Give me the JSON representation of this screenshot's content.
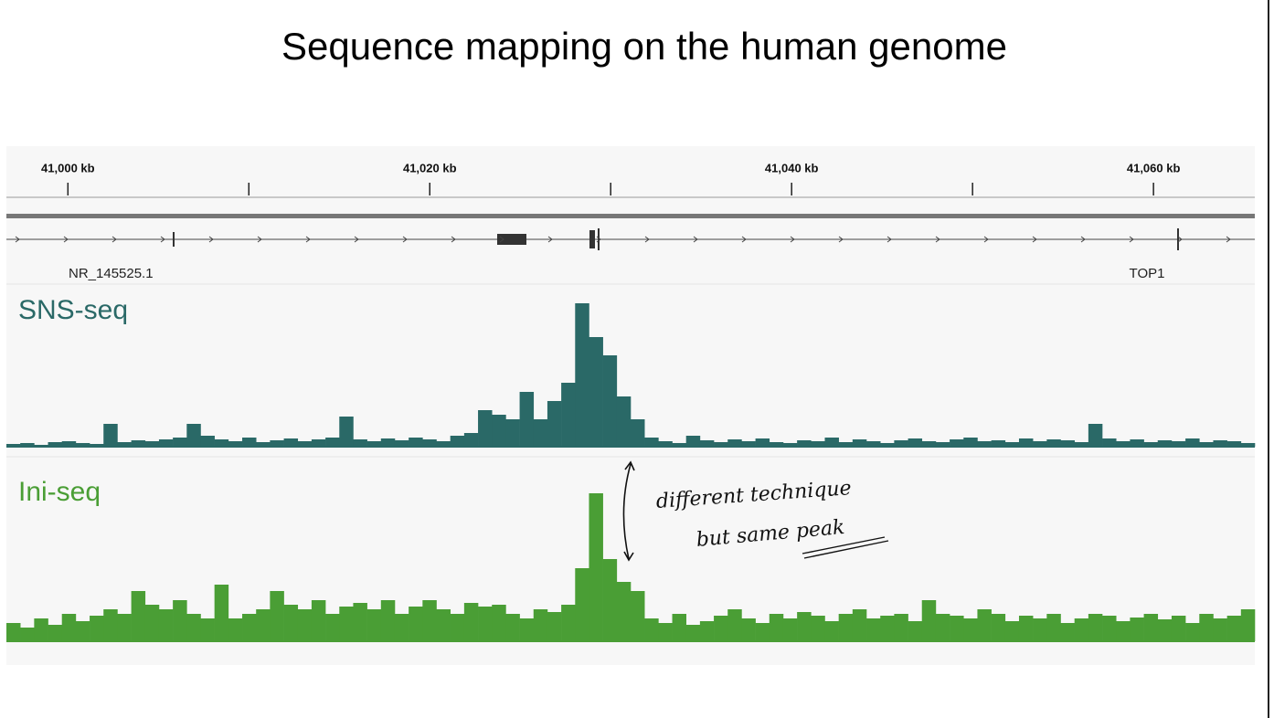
{
  "title": "Sequence mapping on the human genome",
  "genome_browser": {
    "axis": {
      "xlim": [
        40996.6,
        41065.6
      ],
      "ticks": [
        {
          "value": 41000,
          "label": "41,000 kb"
        },
        {
          "value": 41020,
          "label": "41,020 kb"
        },
        {
          "value": 41040,
          "label": "41,040 kb"
        },
        {
          "value": 41060,
          "label": "41,060 kb"
        }
      ],
      "minor_ticks": [
        41010,
        41030,
        41050
      ]
    },
    "genes": [
      {
        "label": "NR_145525.1"
      },
      {
        "label": "TOP1"
      }
    ],
    "tracks": [
      {
        "name": "SNS-seq",
        "color": "#2a6967",
        "values": [
          3,
          4,
          2,
          5,
          6,
          4,
          3,
          25,
          5,
          7,
          6,
          8,
          10,
          25,
          12,
          8,
          6,
          10,
          5,
          7,
          9,
          6,
          8,
          10,
          33,
          8,
          6,
          9,
          7,
          10,
          8,
          6,
          12,
          15,
          40,
          35,
          30,
          60,
          30,
          50,
          70,
          157,
          120,
          100,
          55,
          30,
          10,
          6,
          4,
          12,
          7,
          5,
          8,
          6,
          9,
          5,
          4,
          7,
          6,
          10,
          5,
          8,
          6,
          4,
          7,
          9,
          6,
          5,
          8,
          10,
          6,
          7,
          5,
          9,
          6,
          8,
          7,
          5,
          25,
          9,
          6,
          8,
          5,
          7,
          6,
          9,
          5,
          7,
          6,
          4
        ]
      },
      {
        "name": "Ini-seq",
        "color": "#4a9e35",
        "values": [
          20,
          15,
          25,
          18,
          30,
          22,
          28,
          35,
          30,
          55,
          40,
          35,
          45,
          30,
          25,
          62,
          25,
          30,
          35,
          55,
          40,
          35,
          45,
          30,
          38,
          42,
          35,
          45,
          30,
          38,
          45,
          35,
          30,
          42,
          38,
          40,
          30,
          25,
          35,
          32,
          40,
          80,
          162,
          90,
          65,
          55,
          25,
          20,
          30,
          18,
          22,
          28,
          35,
          25,
          20,
          30,
          25,
          32,
          28,
          22,
          30,
          35,
          25,
          28,
          30,
          22,
          45,
          30,
          28,
          25,
          35,
          30,
          22,
          28,
          25,
          30,
          20,
          25,
          30,
          28,
          22,
          26,
          30,
          24,
          28,
          20,
          30,
          25,
          28,
          35
        ]
      }
    ]
  },
  "annotation": {
    "lines": [
      "different technique",
      "but same peak"
    ]
  }
}
